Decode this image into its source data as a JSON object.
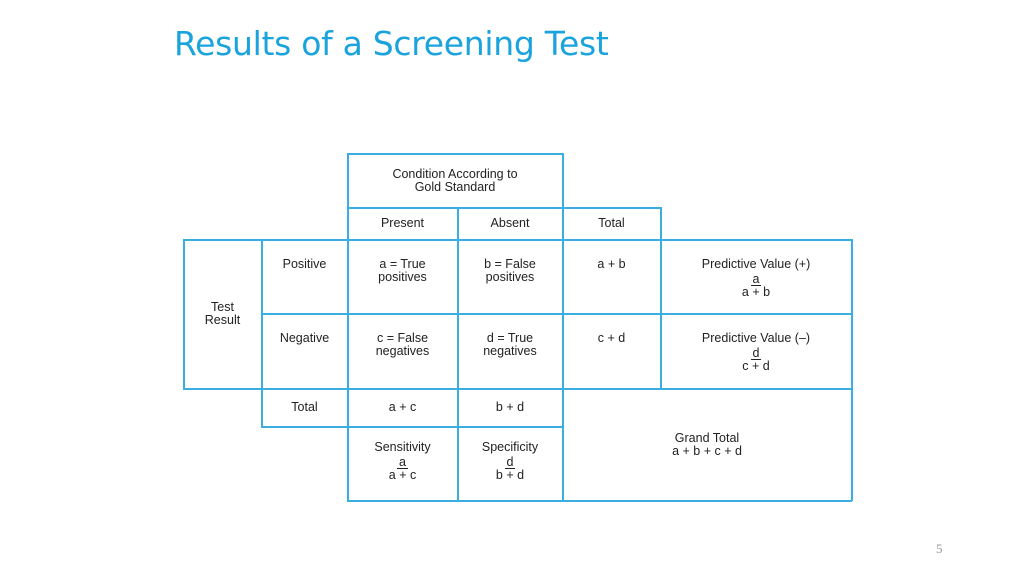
{
  "slide": {
    "title": "Results of a Screening Test",
    "page_number": "5"
  },
  "table": {
    "condition_header": "Condition According to Gold Standard",
    "col_present": "Present",
    "col_absent": "Absent",
    "col_total": "Total",
    "row_group": "Test Result",
    "row_positive": "Positive",
    "row_negative": "Negative",
    "row_total": "Total",
    "cell_a": "a = True positives",
    "cell_b": "b = False positives",
    "cell_ab": "a + b",
    "cell_c": "c = False negatives",
    "cell_d": "d = True negatives",
    "cell_cd": "c + d",
    "cell_ac": "a + c",
    "cell_bd": "b + d",
    "ppv": {
      "label": "Predictive Value (+)",
      "num": "a",
      "den": "a + b"
    },
    "npv": {
      "label": "Predictive Value (–)",
      "num": "d",
      "den": "c + d"
    },
    "sensitivity": {
      "label": "Sensitivity",
      "num": "a",
      "den": "a + c"
    },
    "specificity": {
      "label": "Specificity",
      "num": "d",
      "den": "b + d"
    },
    "grand_total_label": "Grand Total",
    "grand_total_formula": "a + b + c + d"
  },
  "colors": {
    "title": "#1aa3dc",
    "grid": "#3aaee0",
    "text": "#222222"
  }
}
